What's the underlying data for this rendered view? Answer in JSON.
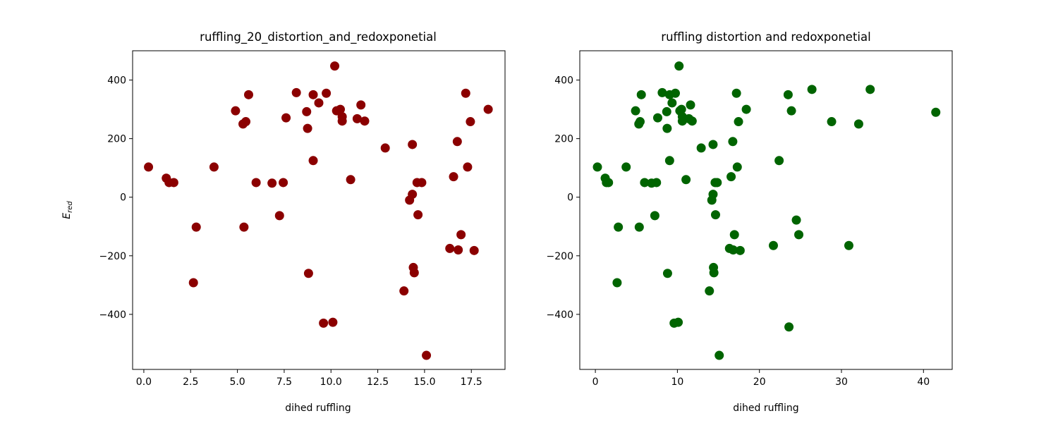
{
  "chart_data": [
    {
      "type": "scatter",
      "title": "ruffling_20_distortion_and_redoxponetial",
      "xlabel": "dihed ruffling",
      "ylabel": "E",
      "ylabel_subscript": "red",
      "marker_color": "#8b0000",
      "xlim": [
        -0.6,
        19.3
      ],
      "ylim": [
        -588,
        500
      ],
      "xticks": [
        0.0,
        2.5,
        5.0,
        7.5,
        10.0,
        12.5,
        15.0,
        17.5
      ],
      "xtick_labels": [
        "0.0",
        "2.5",
        "5.0",
        "7.5",
        "10.0",
        "12.5",
        "15.0",
        "17.5"
      ],
      "yticks": [
        -400,
        -200,
        0,
        200,
        400
      ],
      "ytick_labels": [
        "−400",
        "−200",
        "0",
        "200",
        "400"
      ],
      "x": [
        0.25,
        1.2,
        1.35,
        1.6,
        2.65,
        2.8,
        3.75,
        4.9,
        5.3,
        5.35,
        5.45,
        5.6,
        6.0,
        6.85,
        7.25,
        7.45,
        7.6,
        8.15,
        8.7,
        8.8,
        8.75,
        9.05,
        9.05,
        9.35,
        9.6,
        9.75,
        10.1,
        10.2,
        10.3,
        10.5,
        10.6,
        10.6,
        11.05,
        11.4,
        11.6,
        11.8,
        12.9,
        13.9,
        14.2,
        14.35,
        14.35,
        14.4,
        14.45,
        14.6,
        14.65,
        14.85,
        15.1,
        16.35,
        16.55,
        16.75,
        16.8,
        16.95,
        17.2,
        17.3,
        17.45,
        17.65,
        18.4
      ],
      "y": [
        103,
        65,
        50,
        50,
        -292,
        -102,
        103,
        295,
        250,
        -102,
        258,
        350,
        50,
        48,
        -63,
        50,
        271,
        357,
        292,
        -260,
        235,
        350,
        125,
        322,
        -430,
        355,
        -427,
        448,
        295,
        300,
        275,
        260,
        60,
        268,
        315,
        260,
        168,
        -320,
        -10,
        180,
        10,
        -240,
        -258,
        50,
        -60,
        50,
        -540,
        -175,
        70,
        190,
        -180,
        -128,
        355,
        103,
        258,
        -182,
        300
      ]
    },
    {
      "type": "scatter",
      "title": "ruffling distortion and redoxponetial",
      "xlabel": "dihed ruffling",
      "marker_color": "#006400",
      "xlim": [
        -1.9,
        43.5
      ],
      "ylim": [
        -588,
        500
      ],
      "xticks": [
        0,
        10,
        20,
        30,
        40
      ],
      "xtick_labels": [
        "0",
        "10",
        "20",
        "30",
        "40"
      ],
      "yticks": [
        -400,
        -200,
        0,
        200,
        400
      ],
      "ytick_labels": [
        "−400",
        "−200",
        "0",
        "200",
        "400"
      ],
      "x": [
        0.25,
        1.2,
        1.35,
        1.6,
        2.65,
        2.8,
        3.75,
        4.9,
        5.3,
        5.35,
        5.45,
        5.6,
        6.0,
        6.85,
        7.25,
        7.45,
        7.6,
        8.15,
        8.7,
        8.8,
        8.75,
        9.05,
        9.05,
        9.35,
        9.6,
        9.75,
        10.1,
        10.2,
        10.3,
        10.5,
        10.6,
        10.6,
        11.05,
        11.4,
        11.6,
        11.8,
        12.9,
        13.9,
        14.2,
        14.35,
        14.35,
        14.4,
        14.45,
        14.6,
        14.65,
        14.85,
        15.1,
        16.35,
        16.55,
        16.75,
        16.8,
        16.95,
        17.2,
        17.3,
        17.45,
        17.65,
        18.4,
        21.7,
        22.4,
        23.5,
        23.6,
        23.9,
        24.5,
        24.8,
        26.4,
        28.8,
        30.9,
        32.1,
        33.5,
        41.5
      ],
      "y": [
        103,
        65,
        50,
        50,
        -292,
        -102,
        103,
        295,
        250,
        -102,
        258,
        350,
        50,
        48,
        -63,
        50,
        271,
        357,
        292,
        -260,
        235,
        350,
        125,
        322,
        -430,
        355,
        -427,
        448,
        295,
        300,
        275,
        260,
        60,
        268,
        315,
        260,
        168,
        -320,
        -10,
        180,
        10,
        -240,
        -258,
        50,
        -60,
        50,
        -540,
        -175,
        70,
        190,
        -180,
        -128,
        355,
        103,
        258,
        -182,
        300,
        -165,
        125,
        350,
        -443,
        295,
        -78,
        -128,
        368,
        258,
        -165,
        250,
        368,
        290
      ]
    }
  ]
}
